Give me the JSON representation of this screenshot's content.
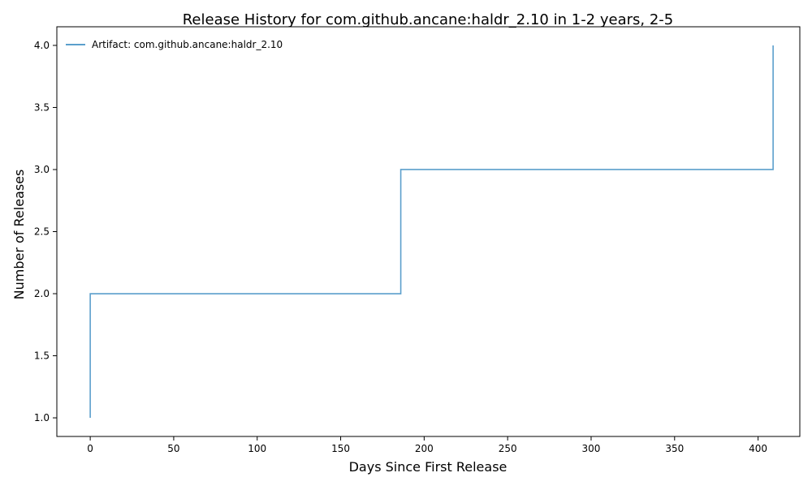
{
  "chart_data": {
    "type": "line",
    "title": "Release History for com.github.ancane:haldr_2.10 in 1-2 years, 2-5",
    "xlabel": "Days Since First Release",
    "ylabel": "Number of Releases",
    "xlim": [
      -20,
      425
    ],
    "ylim": [
      0.85,
      4.15
    ],
    "x_ticks": [
      0,
      50,
      100,
      150,
      200,
      250,
      300,
      350,
      400
    ],
    "y_ticks": [
      1.0,
      1.5,
      2.0,
      2.5,
      3.0,
      3.5,
      4.0
    ],
    "x_tick_labels": [
      "0",
      "50",
      "100",
      "150",
      "200",
      "250",
      "300",
      "350",
      "400"
    ],
    "y_tick_labels": [
      "1.0",
      "1.5",
      "2.0",
      "2.5",
      "3.0",
      "3.5",
      "4.0"
    ],
    "grid": false,
    "legend_position": "top-left",
    "step": "post",
    "series": [
      {
        "name": "Artifact: com.github.ancane:haldr_2.10",
        "color": "#5b9fcc",
        "x": [
          0,
          0,
          186,
          409
        ],
        "y": [
          1,
          2,
          3,
          4
        ]
      }
    ]
  }
}
